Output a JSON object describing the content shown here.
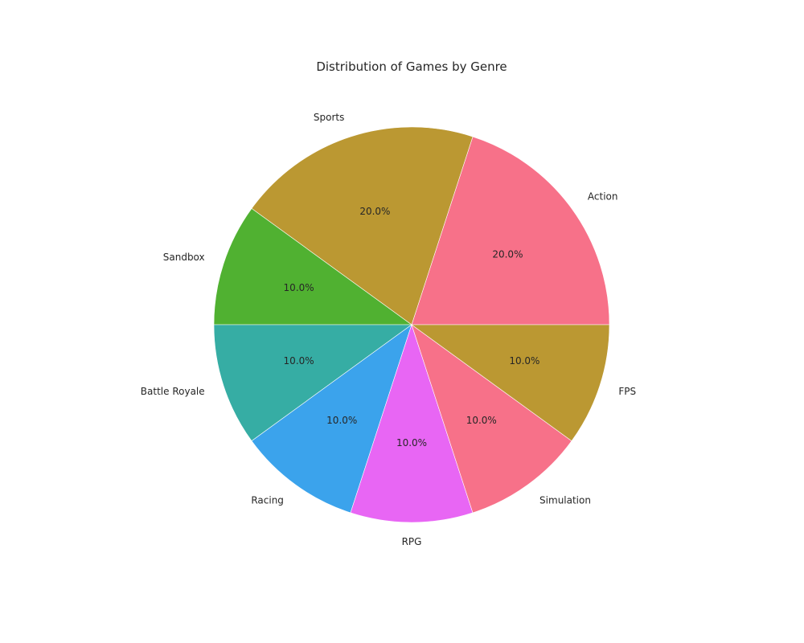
{
  "chart_data": {
    "type": "pie",
    "title": "Distribution of Games by Genre",
    "categories": [
      "Action",
      "Sports",
      "Sandbox",
      "Battle Royale",
      "Racing",
      "RPG",
      "Simulation",
      "FPS"
    ],
    "values": [
      20.0,
      20.0,
      10.0,
      10.0,
      10.0,
      10.0,
      10.0,
      10.0
    ],
    "value_labels": [
      "20.0%",
      "20.0%",
      "10.0%",
      "10.0%",
      "10.0%",
      "10.0%",
      "10.0%",
      "10.0%"
    ],
    "colors": [
      "#f77189",
      "#bb9832",
      "#50b131",
      "#36ada4",
      "#3ba3ec",
      "#e866f4",
      "#f77189",
      "#bb9832"
    ],
    "start_angle_deg": 0,
    "direction": "counterclockwise",
    "legend": "none"
  }
}
